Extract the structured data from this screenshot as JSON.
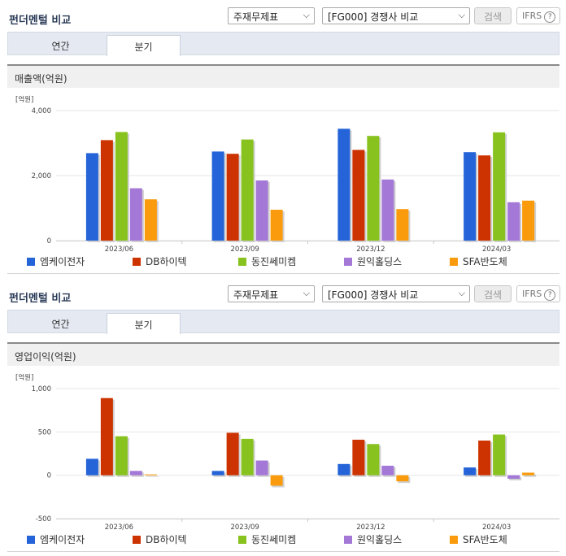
{
  "sections": [
    {
      "title": "펀더멘털 비교",
      "select1": "주재무제표",
      "select2": "[FG000] 경쟁사 비교",
      "search_label": "검색",
      "ifrs_label": "IFRS",
      "ifrs_help": "?",
      "tabs": [
        "연간",
        "분기"
      ],
      "active_tab": 1,
      "panel_title": "매출액(억원)"
    },
    {
      "title": "펀더멘털 비교",
      "select1": "주재무제표",
      "select2": "[FG000] 경쟁사 비교",
      "search_label": "검색",
      "ifrs_label": "IFRS",
      "ifrs_help": "?",
      "tabs": [
        "연간",
        "분기"
      ],
      "active_tab": 1,
      "panel_title": "영업이익(억원)"
    }
  ],
  "colors": {
    "series": [
      "#2563d8",
      "#cc3300",
      "#88c21e",
      "#a478d6",
      "#f99b0c"
    ]
  },
  "chart_data": [
    {
      "type": "bar",
      "title": "매출액(억원)",
      "unit_label": "[억원]",
      "categories": [
        "2023/06",
        "2023/09",
        "2023/12",
        "2024/03"
      ],
      "ylim": [
        0,
        4000
      ],
      "yticks": [
        0,
        2000,
        4000
      ],
      "ytick_labels": [
        "0",
        "2,000",
        "4,000"
      ],
      "grid": true,
      "legend_position": "bottom",
      "series": [
        {
          "name": "엠케이전자",
          "values": [
            2690,
            2740,
            3440,
            2720
          ]
        },
        {
          "name": "DB하이텍",
          "values": [
            3090,
            2670,
            2790,
            2620
          ]
        },
        {
          "name": "동진쎄미켐",
          "values": [
            3340,
            3110,
            3220,
            3330
          ]
        },
        {
          "name": "원익홀딩스",
          "values": [
            1610,
            1850,
            1880,
            1180
          ]
        },
        {
          "name": "SFA반도체",
          "values": [
            1270,
            950,
            970,
            1230
          ]
        }
      ]
    },
    {
      "type": "bar",
      "title": "영업이익(억원)",
      "unit_label": "[억원]",
      "categories": [
        "2023/06",
        "2023/09",
        "2023/12",
        "2024/03"
      ],
      "ylim": [
        -500,
        1000
      ],
      "yticks": [
        -500,
        0,
        500,
        1000
      ],
      "ytick_labels": [
        "-500",
        "0",
        "500",
        "1,000"
      ],
      "grid": true,
      "legend_position": "bottom",
      "series": [
        {
          "name": "엠케이전자",
          "values": [
            190,
            50,
            130,
            90
          ]
        },
        {
          "name": "DB하이텍",
          "values": [
            890,
            490,
            410,
            400
          ]
        },
        {
          "name": "동진쎄미켐",
          "values": [
            450,
            420,
            360,
            470
          ]
        },
        {
          "name": "원익홀딩스",
          "values": [
            50,
            170,
            110,
            -40
          ]
        },
        {
          "name": "SFA반도체",
          "values": [
            10,
            -120,
            -70,
            30
          ]
        }
      ]
    }
  ]
}
